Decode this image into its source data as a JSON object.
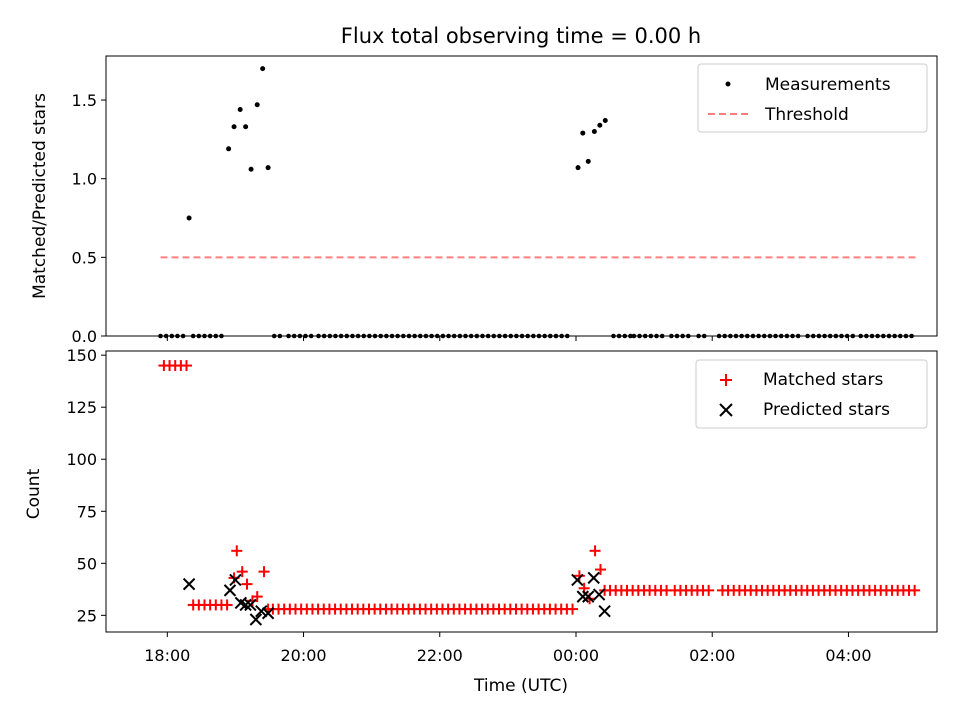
{
  "chart_data": [
    {
      "type": "scatter",
      "title": "Flux total observing time = 0.00 h",
      "xlabel": "",
      "ylabel": "Matched/Predicted stars",
      "ylim": [
        0,
        1.78
      ],
      "xlim_hours": [
        17.1,
        29.3
      ],
      "yticks": [
        0.0,
        0.5,
        1.0,
        1.5
      ],
      "ytick_labels": [
        "0.0",
        "0.5",
        "1.0",
        "1.5"
      ],
      "legend_position": "top-right",
      "series": [
        {
          "name": "Measurements",
          "kind": "scatter",
          "color": "#000000",
          "points": [
            {
              "x": 18.32,
              "y": 0.75
            },
            {
              "x": 18.9,
              "y": 1.19
            },
            {
              "x": 18.98,
              "y": 1.33
            },
            {
              "x": 19.07,
              "y": 1.44
            },
            {
              "x": 19.15,
              "y": 1.33
            },
            {
              "x": 19.23,
              "y": 1.06
            },
            {
              "x": 19.32,
              "y": 1.47
            },
            {
              "x": 19.4,
              "y": 1.7
            },
            {
              "x": 19.48,
              "y": 1.07
            },
            {
              "x": 24.03,
              "y": 1.07
            },
            {
              "x": 24.1,
              "y": 1.29
            },
            {
              "x": 24.18,
              "y": 1.11
            },
            {
              "x": 24.27,
              "y": 1.3
            },
            {
              "x": 24.35,
              "y": 1.34
            },
            {
              "x": 24.43,
              "y": 1.37
            }
          ],
          "zero_segments": [
            [
              17.9,
              18.25
            ],
            [
              18.38,
              18.85
            ],
            [
              19.57,
              19.7
            ],
            [
              19.78,
              20.15
            ],
            [
              20.22,
              23.95
            ],
            [
              24.55,
              24.8
            ],
            [
              24.85,
              25.3
            ],
            [
              25.4,
              25.7
            ],
            [
              25.8,
              25.9
            ],
            [
              26.1,
              27.3
            ],
            [
              27.4,
              28.1
            ],
            [
              28.18,
              29.0
            ]
          ]
        },
        {
          "name": "Threshold",
          "kind": "line",
          "color": "#ff7f7f",
          "dash": "dashed",
          "points": [
            {
              "x": 17.9,
              "y": 0.5
            },
            {
              "x": 29.0,
              "y": 0.5
            }
          ]
        }
      ]
    },
    {
      "type": "scatter",
      "title": "",
      "xlabel": "Time (UTC)",
      "ylabel": "Count",
      "ylim": [
        17,
        152
      ],
      "xlim_hours": [
        17.1,
        29.3
      ],
      "yticks": [
        25,
        50,
        75,
        100,
        125,
        150
      ],
      "ytick_labels": [
        "25",
        "50",
        "75",
        "100",
        "125",
        "150"
      ],
      "xticks_hours": [
        18,
        20,
        22,
        24,
        26,
        28
      ],
      "xtick_labels": [
        "18:00",
        "20:00",
        "22:00",
        "00:00",
        "02:00",
        "04:00"
      ],
      "legend_position": "top-right",
      "series": [
        {
          "name": "Matched stars",
          "marker": "plus",
          "color": "#ff0000",
          "segments": [
            {
              "from": 17.95,
              "to": 18.3,
              "y": 145
            },
            {
              "from": 18.38,
              "to": 18.9,
              "y": 30
            },
            {
              "from": 19.55,
              "to": 23.95,
              "y": 28
            },
            {
              "from": 24.5,
              "to": 25.4,
              "y": 37
            },
            {
              "from": 25.45,
              "to": 25.95,
              "y": 37
            },
            {
              "from": 26.15,
              "to": 29.0,
              "y": 37
            }
          ],
          "points": [
            {
              "x": 18.98,
              "y": 43
            },
            {
              "x": 19.02,
              "y": 56
            },
            {
              "x": 19.1,
              "y": 46
            },
            {
              "x": 19.17,
              "y": 40
            },
            {
              "x": 19.25,
              "y": 32
            },
            {
              "x": 19.32,
              "y": 34
            },
            {
              "x": 19.42,
              "y": 46
            },
            {
              "x": 19.48,
              "y": 28
            },
            {
              "x": 24.05,
              "y": 44
            },
            {
              "x": 24.12,
              "y": 38
            },
            {
              "x": 24.2,
              "y": 33
            },
            {
              "x": 24.28,
              "y": 56
            },
            {
              "x": 24.36,
              "y": 47
            },
            {
              "x": 24.42,
              "y": 37
            }
          ]
        },
        {
          "name": "Predicted stars",
          "marker": "x",
          "color": "#000000",
          "points": [
            {
              "x": 18.32,
              "y": 40
            },
            {
              "x": 18.92,
              "y": 37
            },
            {
              "x": 19.0,
              "y": 42
            },
            {
              "x": 19.08,
              "y": 31
            },
            {
              "x": 19.15,
              "y": 30
            },
            {
              "x": 19.22,
              "y": 30
            },
            {
              "x": 19.3,
              "y": 23
            },
            {
              "x": 19.38,
              "y": 27
            },
            {
              "x": 19.48,
              "y": 26
            },
            {
              "x": 24.02,
              "y": 42
            },
            {
              "x": 24.1,
              "y": 34
            },
            {
              "x": 24.18,
              "y": 34
            },
            {
              "x": 24.26,
              "y": 43
            },
            {
              "x": 24.34,
              "y": 35
            },
            {
              "x": 24.42,
              "y": 27
            }
          ]
        }
      ]
    }
  ]
}
